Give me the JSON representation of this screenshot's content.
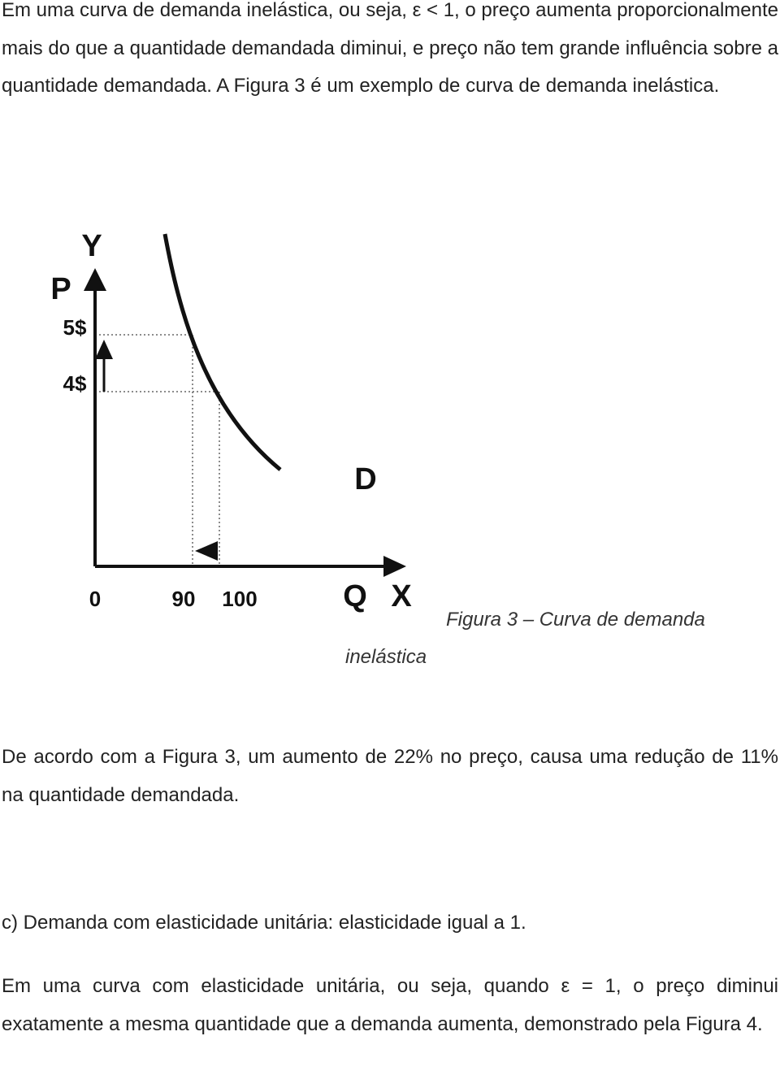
{
  "paragraphs": [
    "Em uma curva de demanda inelástica, ou seja, ε < 1, o preço aumenta proporcionalmente mais do que a quantidade demandada diminui, e preço não tem grande influência sobre a quantidade demandada. A Figura 3 é um exemplo de curva de demanda inelástica.",
    "De acordo com a Figura 3, um aumento de 22% no preço, causa uma redução de 11% na quantidade demandada.",
    "c) Demanda com elasticidade unitária: elasticidade igual a 1.",
    "Em uma curva com elasticidade unitária, ou seja, quando ε = 1, o preço diminui exatamente a mesma quantidade que a demanda aumenta, demonstrado pela Figura 4."
  ],
  "figure": {
    "y_axis": "Y",
    "price_axis": "P",
    "x_axis": "X",
    "quantity_axis": "Q",
    "curve_label": "D",
    "price_labels": [
      "5$",
      "4$"
    ],
    "quantity_labels": [
      "0",
      "90",
      "100"
    ],
    "caption": "Figura 3 – Curva de demanda inelástica"
  }
}
